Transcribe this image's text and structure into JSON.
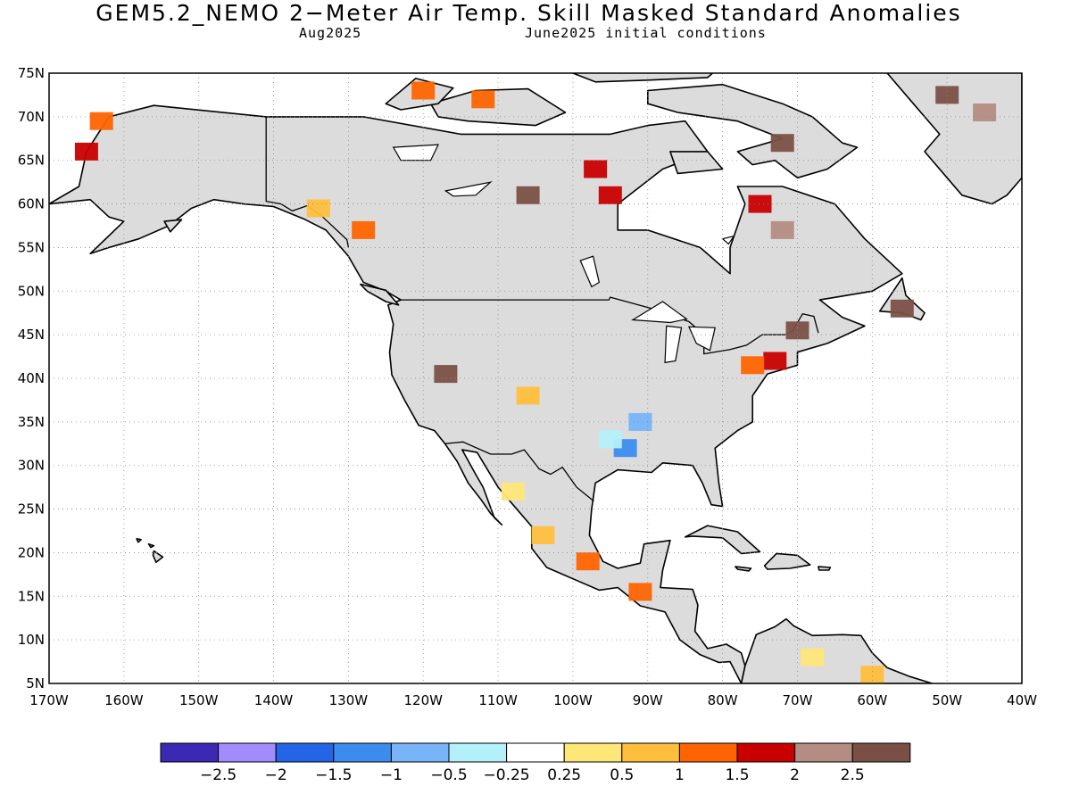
{
  "header": {
    "title": "GEM5.2_NEMO 2−Meter Air Temp. Skill Masked Standard Anomalies",
    "lead_month": "Aug2025",
    "init": "June2025 initial conditions"
  },
  "map": {
    "lon_min": -170,
    "lon_max": -40,
    "lat_min": 5,
    "lat_max": 75,
    "lat_ticks": [
      "5N",
      "10N",
      "15N",
      "20N",
      "25N",
      "30N",
      "35N",
      "40N",
      "45N",
      "50N",
      "55N",
      "60N",
      "65N",
      "70N",
      "75N"
    ],
    "lon_ticks": [
      "170W",
      "160W",
      "150W",
      "140W",
      "130W",
      "120W",
      "110W",
      "100W",
      "90W",
      "80W",
      "70W",
      "60W",
      "50W",
      "40W"
    ],
    "land_color": "#dcdcdc",
    "ocean_color": "#ffffff",
    "coast_color": "#000000",
    "gridline_style": "dotted"
  },
  "colorbar": {
    "colors": [
      "#3c28b4",
      "#a08cff",
      "#2464e6",
      "#3c8cf0",
      "#78b4f8",
      "#b4f0fa",
      "#ffffff",
      "#ffe678",
      "#ffbe3c",
      "#ff6400",
      "#c80000",
      "#b48c82",
      "#7a5046"
    ],
    "labels": [
      "−2.5",
      "−2",
      "−1.5",
      "−1",
      "−0.5",
      "−0.25",
      "0.25",
      "0.5",
      "1",
      "1.5",
      "2",
      "2.5"
    ]
  },
  "anomalies": [
    {
      "name": "greenland-ne",
      "lon": -50,
      "lat": 72.5,
      "level": 12
    },
    {
      "name": "greenland-n",
      "lon": -45,
      "lat": 70.5,
      "level": 11
    },
    {
      "name": "baffin-n",
      "lon": -72,
      "lat": 67,
      "level": 12
    },
    {
      "name": "hudson-w",
      "lon": -97,
      "lat": 64,
      "level": 10
    },
    {
      "name": "hudson-w2",
      "lon": -95,
      "lat": 61,
      "level": 10
    },
    {
      "name": "quebec-n",
      "lon": -75,
      "lat": 60,
      "level": 10
    },
    {
      "name": "quebec-n2",
      "lon": -72,
      "lat": 57,
      "level": 11
    },
    {
      "name": "alaska-nw",
      "lon": -163,
      "lat": 69.5,
      "level": 9
    },
    {
      "name": "alaska-w",
      "lon": -165,
      "lat": 66,
      "level": 10
    },
    {
      "name": "bc-coast",
      "lon": -128,
      "lat": 57,
      "level": 9
    },
    {
      "name": "yukon-s",
      "lon": -134,
      "lat": 59.5,
      "level": 8
    },
    {
      "name": "arctic-isl",
      "lon": -120,
      "lat": 73,
      "level": 9
    },
    {
      "name": "arctic-isl2",
      "lon": -112,
      "lat": 72,
      "level": 9
    },
    {
      "name": "nunavut-c",
      "lon": -106,
      "lat": 61,
      "level": 12
    },
    {
      "name": "new-england",
      "lon": -73,
      "lat": 42,
      "level": 10
    },
    {
      "name": "new-york",
      "lon": -76,
      "lat": 41.5,
      "level": 9
    },
    {
      "name": "maine",
      "lon": -70,
      "lat": 45.5,
      "level": 12
    },
    {
      "name": "newfoundland",
      "lon": -56,
      "lat": 48,
      "level": 12
    },
    {
      "name": "colorado",
      "lon": -106,
      "lat": 38,
      "level": 8
    },
    {
      "name": "nevada",
      "lon": -117,
      "lat": 40.5,
      "level": 12
    },
    {
      "name": "mexico-nw",
      "lon": -108,
      "lat": 27,
      "level": 7
    },
    {
      "name": "mexico-c",
      "lon": -104,
      "lat": 22,
      "level": 8
    },
    {
      "name": "mexico-s",
      "lon": -98,
      "lat": 19,
      "level": 9
    },
    {
      "name": "guatemala",
      "lon": -91,
      "lat": 15.5,
      "level": 9
    },
    {
      "name": "venezuela",
      "lon": -68,
      "lat": 8,
      "level": 7
    },
    {
      "name": "guyana",
      "lon": -60,
      "lat": 6,
      "level": 8
    },
    {
      "name": "louisiana",
      "lon": -93,
      "lat": 32,
      "level": 3
    },
    {
      "name": "texas-e",
      "lon": -95,
      "lat": 33,
      "level": 5
    },
    {
      "name": "arkansas",
      "lon": -91,
      "lat": 35,
      "level": 4
    }
  ]
}
